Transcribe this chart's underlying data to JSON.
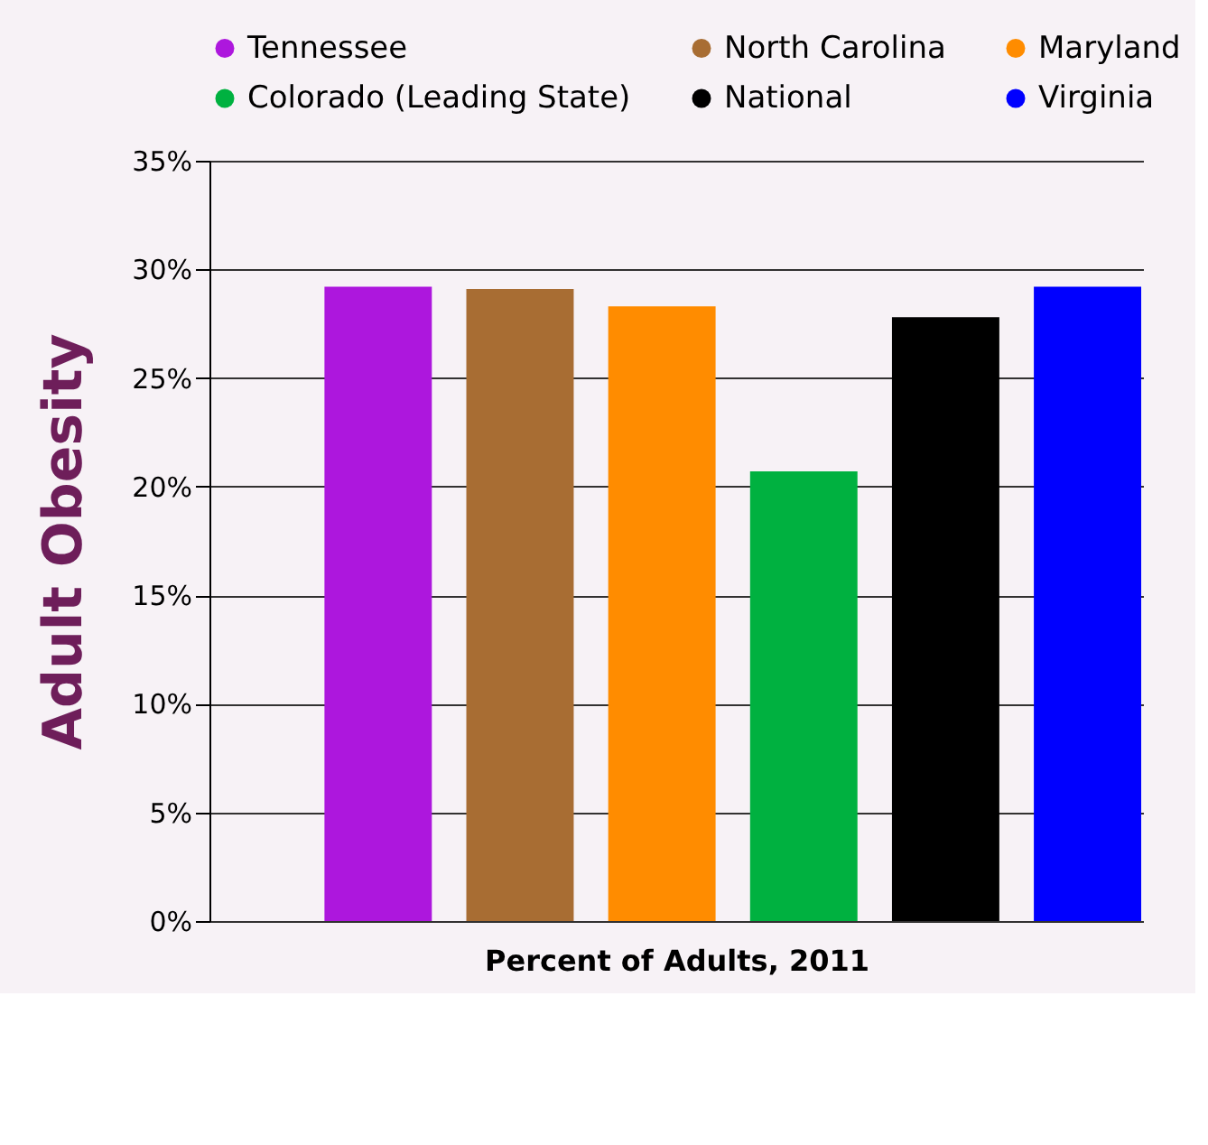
{
  "chart_data": {
    "type": "bar",
    "xlabel": "Percent of Adults, 2011",
    "ylabel": "Adult Obesity",
    "categories": [
      null
    ],
    "series": [
      {
        "name": "Tennessee",
        "color": "#ad17dd",
        "values": [
          29.2
        ]
      },
      {
        "name": "North Carolina",
        "color": "#a86d33",
        "values": [
          29.1
        ]
      },
      {
        "name": "Maryland",
        "color": "#ff8c00",
        "values": [
          28.3
        ]
      },
      {
        "name": "Colorado (Leading State)",
        "color": "#00b140",
        "values": [
          20.7
        ]
      },
      {
        "name": "National",
        "color": "#000000",
        "values": [
          27.8
        ]
      },
      {
        "name": "Virginia",
        "color": "#0000ff",
        "values": [
          29.2
        ]
      }
    ],
    "ylim": [
      0,
      35
    ],
    "yticks": [
      {
        "value": 0,
        "label": "0%"
      },
      {
        "value": 5,
        "label": "5%"
      },
      {
        "value": 10,
        "label": "10%"
      },
      {
        "value": 15,
        "label": "15%"
      },
      {
        "value": 20,
        "label": "20%"
      },
      {
        "value": 25,
        "label": "25%"
      },
      {
        "value": 30,
        "label": "30%"
      },
      {
        "value": 35,
        "label": "35%"
      }
    ],
    "grid": "y",
    "legend": "top",
    "tick_labels": "y"
  }
}
